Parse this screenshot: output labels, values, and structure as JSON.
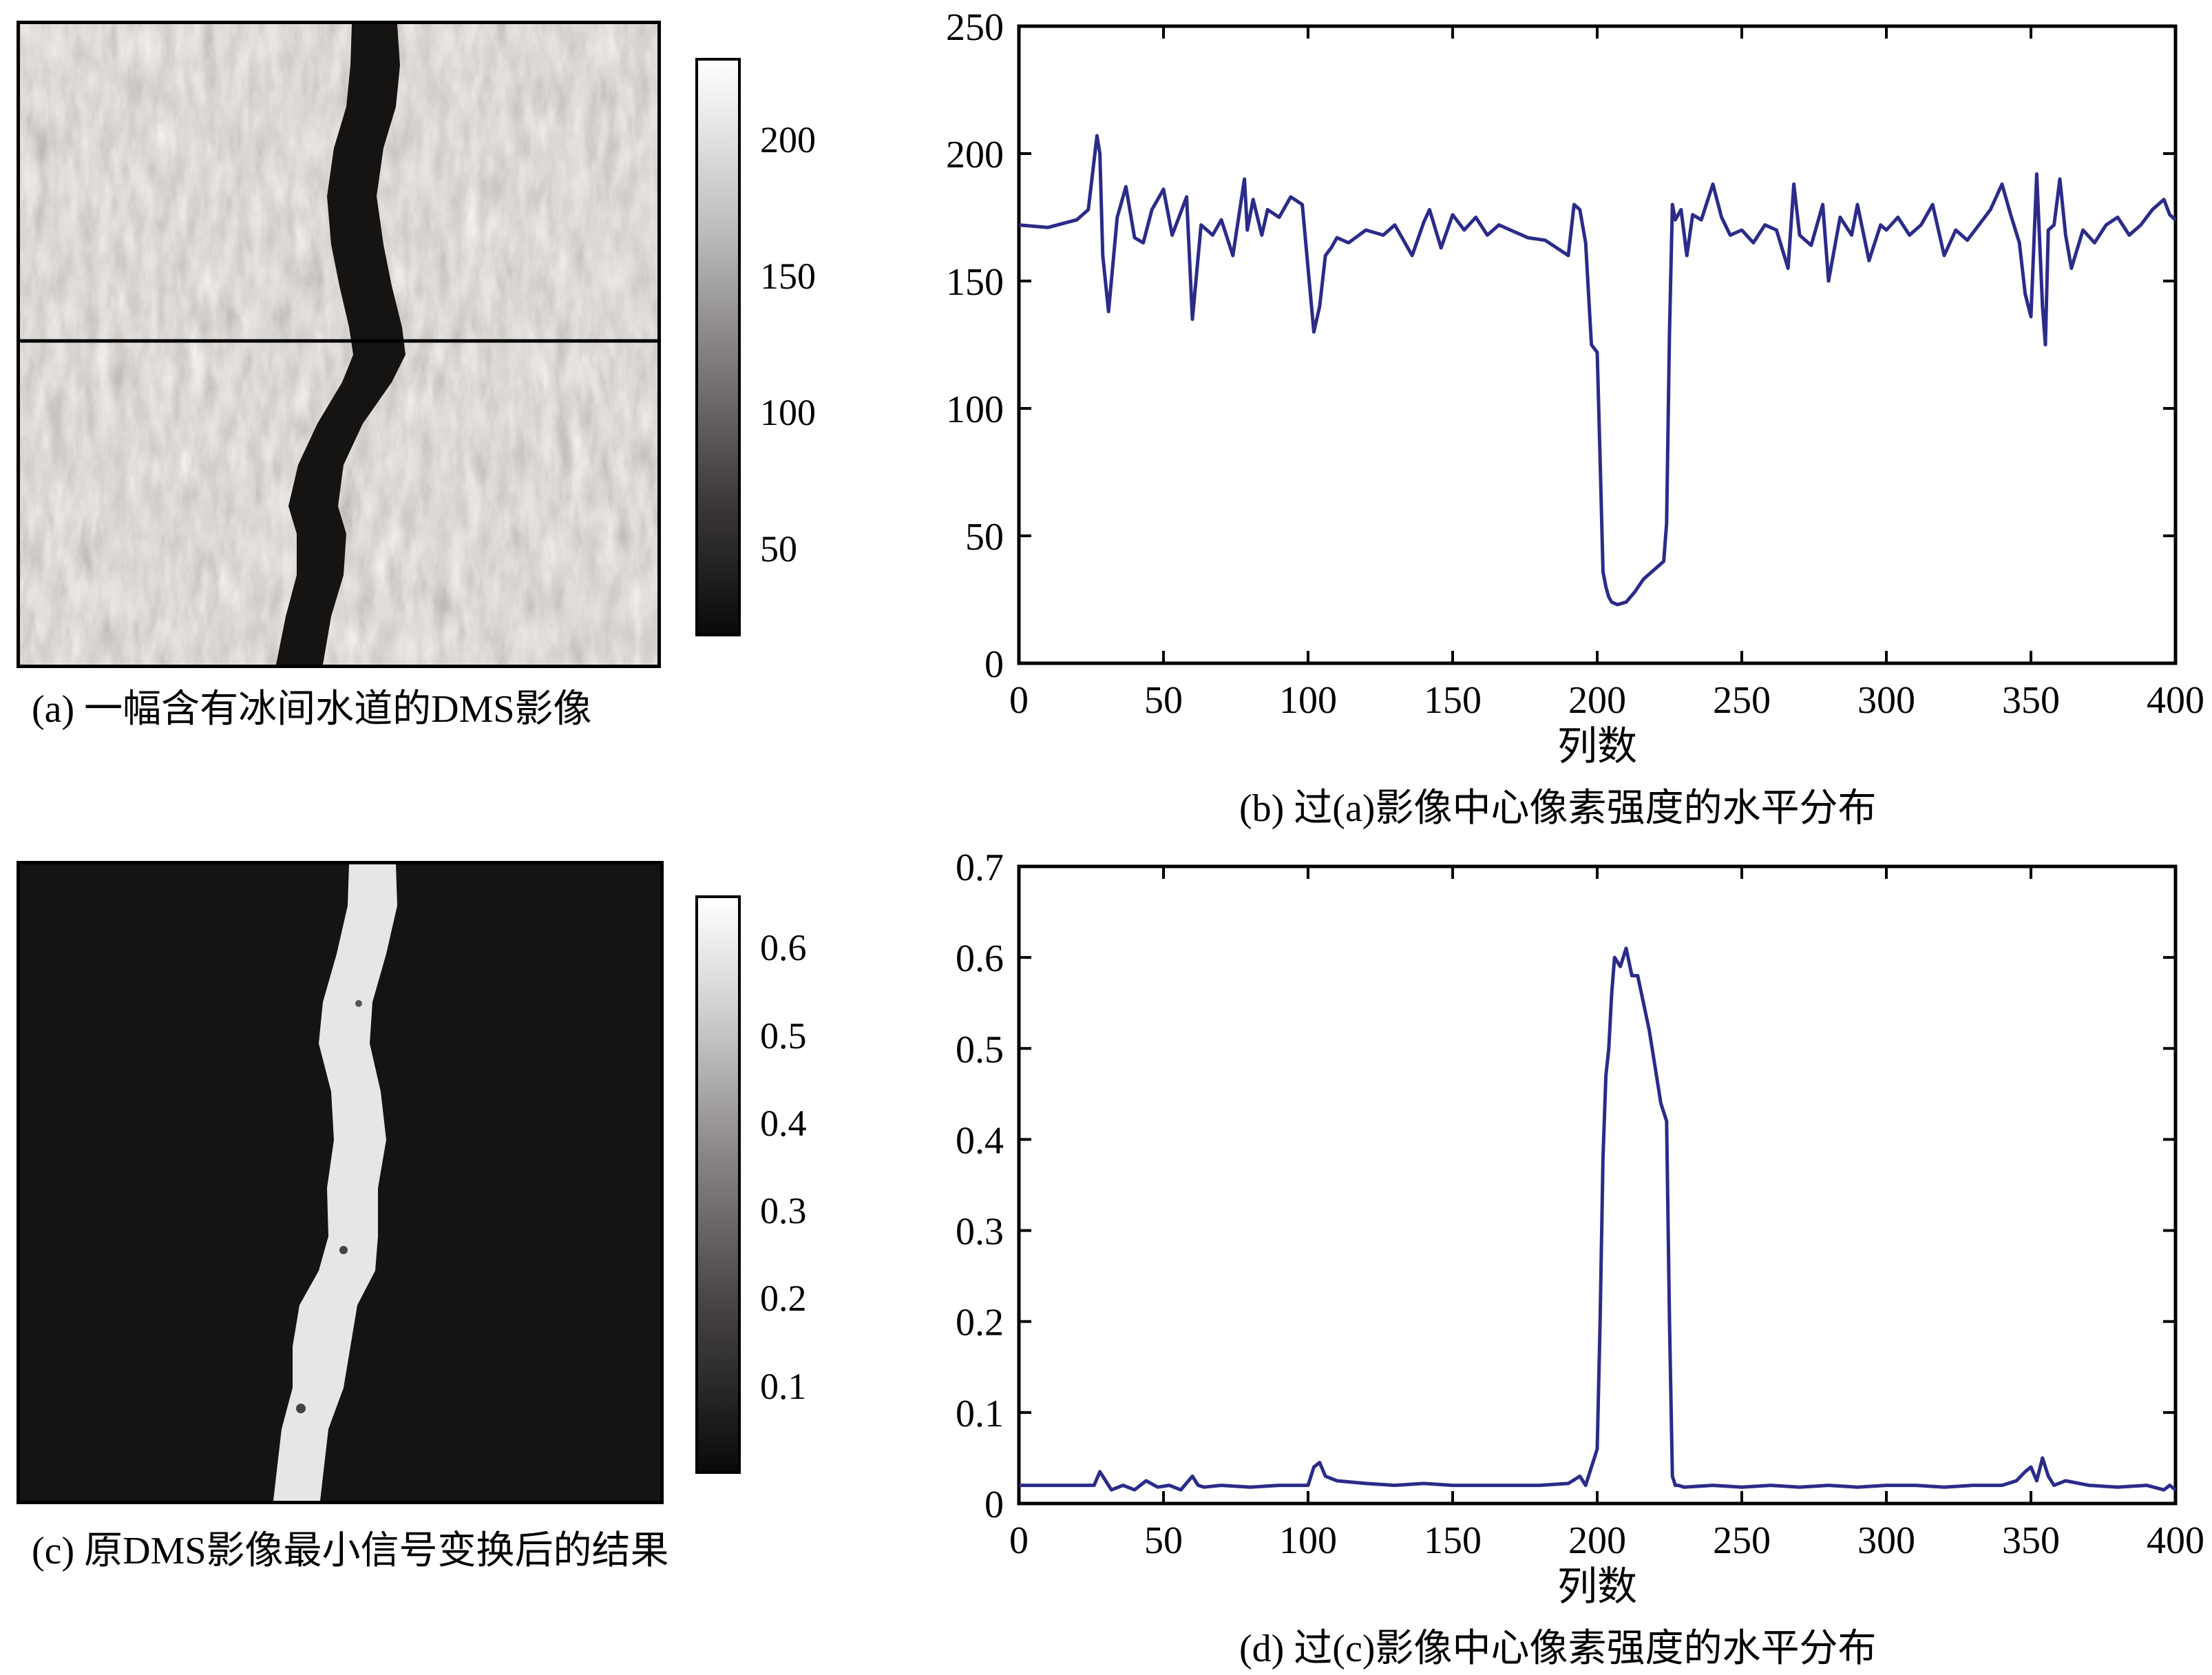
{
  "captions": {
    "a": "(a) 一幅含有冰间水道的DMS影像",
    "b": "(b) 过(a)影像中心像素强度的水平分布",
    "c": "(c) 原DMS影像最小信号变换后的结果",
    "d": "(d) 过(c)影像中心像素强度的水平分布"
  },
  "colorbars": {
    "a": {
      "ticks": [
        "200",
        "150",
        "100",
        "50"
      ],
      "values": [
        200,
        150,
        100,
        50
      ],
      "range": [
        18,
        230
      ]
    },
    "c": {
      "ticks": [
        "0.6",
        "0.5",
        "0.4",
        "0.3",
        "0.2",
        "0.1"
      ],
      "values": [
        0.6,
        0.5,
        0.4,
        0.3,
        0.2,
        0.1
      ],
      "range": [
        0.0,
        0.66
      ]
    }
  },
  "colors": {
    "line": "#2b2b8a",
    "axis": "#000000"
  },
  "chart_data": [
    {
      "id": "b",
      "type": "line",
      "xlabel": "列数",
      "ylabel": "",
      "xlim": [
        0,
        400
      ],
      "ylim": [
        0,
        250
      ],
      "xticks": [
        0,
        50,
        100,
        150,
        200,
        250,
        300,
        350,
        400
      ],
      "yticks": [
        0,
        50,
        100,
        150,
        200,
        250
      ],
      "grid": false,
      "x": [
        0,
        10,
        20,
        24,
        27,
        28,
        29,
        31,
        34,
        37,
        40,
        43,
        46,
        50,
        53,
        56,
        58,
        60,
        63,
        67,
        70,
        74,
        78,
        79,
        81,
        84,
        86,
        90,
        94,
        98,
        100,
        102,
        104,
        106,
        108,
        110,
        114,
        120,
        126,
        130,
        136,
        140,
        142,
        146,
        150,
        154,
        158,
        162,
        166,
        170,
        176,
        182,
        186,
        190,
        192,
        194,
        196,
        198,
        200,
        201,
        202,
        203,
        204,
        205,
        207,
        210,
        213,
        216,
        220,
        223,
        224,
        225,
        226,
        227,
        229,
        231,
        233,
        236,
        240,
        243,
        246,
        250,
        254,
        258,
        262,
        266,
        268,
        270,
        274,
        278,
        280,
        284,
        288,
        290,
        294,
        298,
        300,
        304,
        308,
        312,
        316,
        320,
        324,
        328,
        332,
        336,
        340,
        343,
        346,
        348,
        350,
        352,
        354,
        355,
        356,
        358,
        360,
        362,
        364,
        368,
        372,
        376,
        380,
        384,
        388,
        392,
        396,
        398,
        400
      ],
      "y": [
        172,
        171,
        174,
        178,
        207,
        200,
        160,
        138,
        175,
        187,
        167,
        165,
        178,
        186,
        168,
        177,
        183,
        135,
        172,
        168,
        174,
        160,
        190,
        170,
        182,
        168,
        178,
        175,
        183,
        180,
        155,
        130,
        140,
        160,
        163,
        167,
        165,
        170,
        168,
        172,
        160,
        173,
        178,
        163,
        176,
        170,
        175,
        168,
        172,
        170,
        167,
        166,
        163,
        160,
        180,
        178,
        165,
        125,
        122,
        80,
        36,
        30,
        26,
        24,
        23,
        24,
        28,
        33,
        37,
        40,
        55,
        130,
        180,
        174,
        178,
        160,
        176,
        174,
        188,
        175,
        168,
        170,
        165,
        172,
        170,
        155,
        188,
        168,
        164,
        180,
        150,
        175,
        168,
        180,
        158,
        172,
        170,
        175,
        168,
        172,
        180,
        160,
        170,
        166,
        172,
        178,
        188,
        176,
        165,
        145,
        136,
        192,
        140,
        125,
        170,
        172,
        190,
        168,
        155,
        170,
        165,
        172,
        175,
        168,
        172,
        178,
        182,
        176,
        174
      ]
    },
    {
      "id": "d",
      "type": "line",
      "xlabel": "列数",
      "ylabel": "",
      "xlim": [
        0,
        400
      ],
      "ylim": [
        0,
        0.7
      ],
      "xticks": [
        0,
        50,
        100,
        150,
        200,
        250,
        300,
        350,
        400
      ],
      "yticks": [
        0,
        0.1,
        0.2,
        0.3,
        0.4,
        0.5,
        0.6,
        0.7
      ],
      "grid": false,
      "x": [
        0,
        10,
        20,
        26,
        28,
        30,
        32,
        36,
        40,
        44,
        48,
        52,
        56,
        60,
        62,
        64,
        70,
        80,
        90,
        100,
        102,
        104,
        106,
        110,
        120,
        130,
        140,
        150,
        160,
        170,
        180,
        190,
        194,
        196,
        198,
        200,
        201,
        202,
        203,
        204,
        205,
        206,
        208,
        210,
        212,
        214,
        216,
        218,
        220,
        222,
        224,
        225,
        226,
        227,
        228,
        230,
        240,
        250,
        260,
        270,
        280,
        290,
        300,
        310,
        320,
        330,
        340,
        345,
        348,
        350,
        352,
        354,
        356,
        358,
        362,
        370,
        380,
        390,
        396,
        398,
        400
      ],
      "y": [
        0.02,
        0.02,
        0.02,
        0.02,
        0.035,
        0.025,
        0.015,
        0.02,
        0.015,
        0.025,
        0.018,
        0.02,
        0.015,
        0.03,
        0.02,
        0.018,
        0.02,
        0.018,
        0.02,
        0.02,
        0.04,
        0.045,
        0.03,
        0.025,
        0.022,
        0.02,
        0.022,
        0.02,
        0.02,
        0.02,
        0.02,
        0.022,
        0.03,
        0.02,
        0.04,
        0.06,
        0.2,
        0.38,
        0.47,
        0.5,
        0.56,
        0.6,
        0.59,
        0.61,
        0.58,
        0.58,
        0.55,
        0.52,
        0.48,
        0.44,
        0.42,
        0.2,
        0.03,
        0.02,
        0.02,
        0.018,
        0.02,
        0.018,
        0.02,
        0.018,
        0.02,
        0.018,
        0.02,
        0.02,
        0.018,
        0.02,
        0.02,
        0.025,
        0.035,
        0.04,
        0.025,
        0.05,
        0.03,
        0.02,
        0.025,
        0.02,
        0.018,
        0.02,
        0.015,
        0.02,
        0.015
      ]
    }
  ]
}
